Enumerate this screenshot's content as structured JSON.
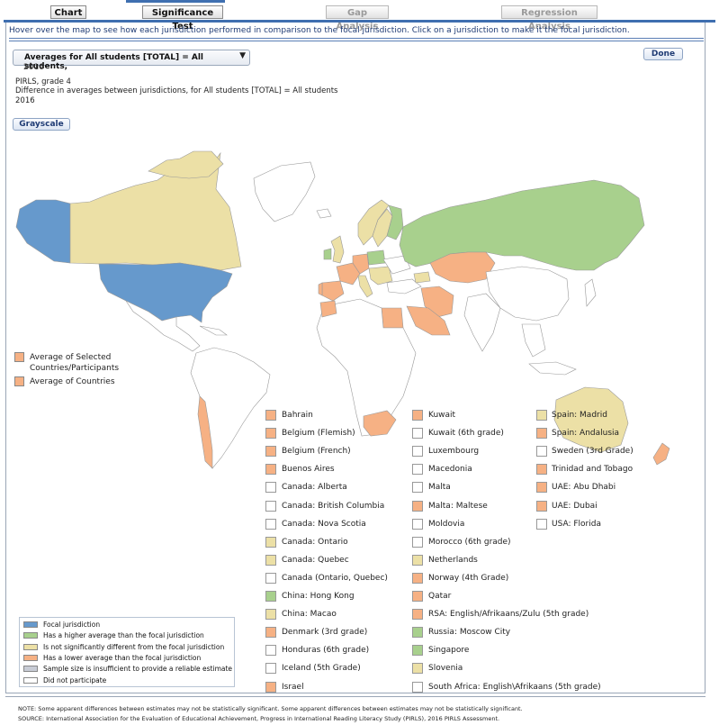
{
  "tabs": [
    {
      "label": "Chart",
      "enabled": true
    },
    {
      "label": "Significance Test",
      "enabled": true
    },
    {
      "label": "Gap Analysis",
      "enabled": false
    },
    {
      "label": "Regression Analysis",
      "enabled": false
    }
  ],
  "hint": "Hover over the map to see how each jurisdiction performed in comparison to the focal jurisdiction. Click on a jurisdiction to make it the focal jurisdiction.",
  "dropdown": {
    "line1": "Averages for All students [TOTAL] = All students,",
    "line2": "2016",
    "arrow": "▼"
  },
  "done_label": "Done",
  "meta": {
    "line1": "PIRLS, grade 4",
    "line2": "Difference in averages between jurisdictions, for All students [TOTAL] = All students",
    "line3": "2016"
  },
  "grayscale_label": "Grayscale",
  "colors": {
    "focal": "#6699cc",
    "higher": "#a8d08d",
    "not_sig": "#ece0a6",
    "lower": "#f6b184",
    "insufficient": "#c8ccd6",
    "not_participate": "#ffffff"
  },
  "averages": [
    {
      "label_line1": "Average of Selected",
      "label_line2": "Countries/Participants",
      "status": "lower"
    },
    {
      "label_line1": "Average of Countries",
      "label_line2": "",
      "status": "lower"
    }
  ],
  "jurisdictions": {
    "col1": [
      {
        "name": "Bahrain",
        "status": "lower"
      },
      {
        "name": "Belgium (Flemish)",
        "status": "lower"
      },
      {
        "name": "Belgium (French)",
        "status": "lower"
      },
      {
        "name": "Buenos Aires",
        "status": "lower"
      },
      {
        "name": "Canada: Alberta",
        "status": "not_participate"
      },
      {
        "name": "Canada: British Columbia",
        "status": "not_participate"
      },
      {
        "name": "Canada: Nova Scotia",
        "status": "not_participate"
      },
      {
        "name": "Canada: Ontario",
        "status": "not_sig"
      },
      {
        "name": "Canada: Quebec",
        "status": "not_sig"
      },
      {
        "name": "Canada (Ontario, Quebec)",
        "status": "not_participate"
      },
      {
        "name": "China: Hong Kong",
        "status": "higher"
      },
      {
        "name": "China: Macao",
        "status": "not_sig"
      },
      {
        "name": "Denmark (3rd grade)",
        "status": "lower"
      },
      {
        "name": "Honduras (6th grade)",
        "status": "not_participate"
      },
      {
        "name": "Iceland (5th Grade)",
        "status": "not_participate"
      },
      {
        "name": "Israel",
        "status": "lower"
      }
    ],
    "col2": [
      {
        "name": "Kuwait",
        "status": "lower"
      },
      {
        "name": "Kuwait (6th grade)",
        "status": "not_participate"
      },
      {
        "name": "Luxembourg",
        "status": "not_participate"
      },
      {
        "name": "Macedonia",
        "status": "not_participate"
      },
      {
        "name": "Malta",
        "status": "not_participate"
      },
      {
        "name": "Malta: Maltese",
        "status": "lower"
      },
      {
        "name": "Moldovia",
        "status": "not_participate"
      },
      {
        "name": "Morocco (6th grade)",
        "status": "not_participate"
      },
      {
        "name": "Netherlands",
        "status": "not_sig"
      },
      {
        "name": "Norway (4th Grade)",
        "status": "lower"
      },
      {
        "name": "Qatar",
        "status": "lower"
      },
      {
        "name": "RSA: English/Afrikaans/Zulu (5th grade)",
        "status": "lower"
      },
      {
        "name": "Russia: Moscow City",
        "status": "higher"
      },
      {
        "name": "Singapore",
        "status": "higher"
      },
      {
        "name": "Slovenia",
        "status": "not_sig"
      },
      {
        "name": "South Africa: English\\Afrikaans (5th grade)",
        "status": "not_participate"
      }
    ],
    "col3": [
      {
        "name": "Spain: Madrid",
        "status": "not_sig"
      },
      {
        "name": "Spain: Andalusia",
        "status": "lower"
      },
      {
        "name": "Sweden (3rd Grade)",
        "status": "not_participate"
      },
      {
        "name": "Trinidad and Tobago",
        "status": "lower"
      },
      {
        "name": "UAE: Abu Dhabi",
        "status": "lower"
      },
      {
        "name": "UAE: Dubai",
        "status": "lower"
      },
      {
        "name": "USA: Florida",
        "status": "not_participate"
      }
    ]
  },
  "legend": [
    {
      "label": "Focal jurisdiction",
      "status": "focal"
    },
    {
      "label": "Has a higher average than the focal jurisdiction",
      "status": "higher"
    },
    {
      "label": "Is not significantly different from the focal jurisdiction",
      "status": "not_sig"
    },
    {
      "label": "Has a lower average than the focal jurisdiction",
      "status": "lower"
    },
    {
      "label": "Sample size is insufficient to provide a reliable estimate",
      "status": "insufficient"
    },
    {
      "label": "Did not participate",
      "status": "not_participate"
    }
  ],
  "notes": {
    "note": "NOTE: Some apparent differences between estimates may not be statistically significant. Some apparent differences between estimates may not be statistically significant.",
    "source": "SOURCE: International Association for the Evaluation of Educational Achievement, Progress in International Reading Literacy Study (PIRLS), 2016 PIRLS Assessment."
  }
}
